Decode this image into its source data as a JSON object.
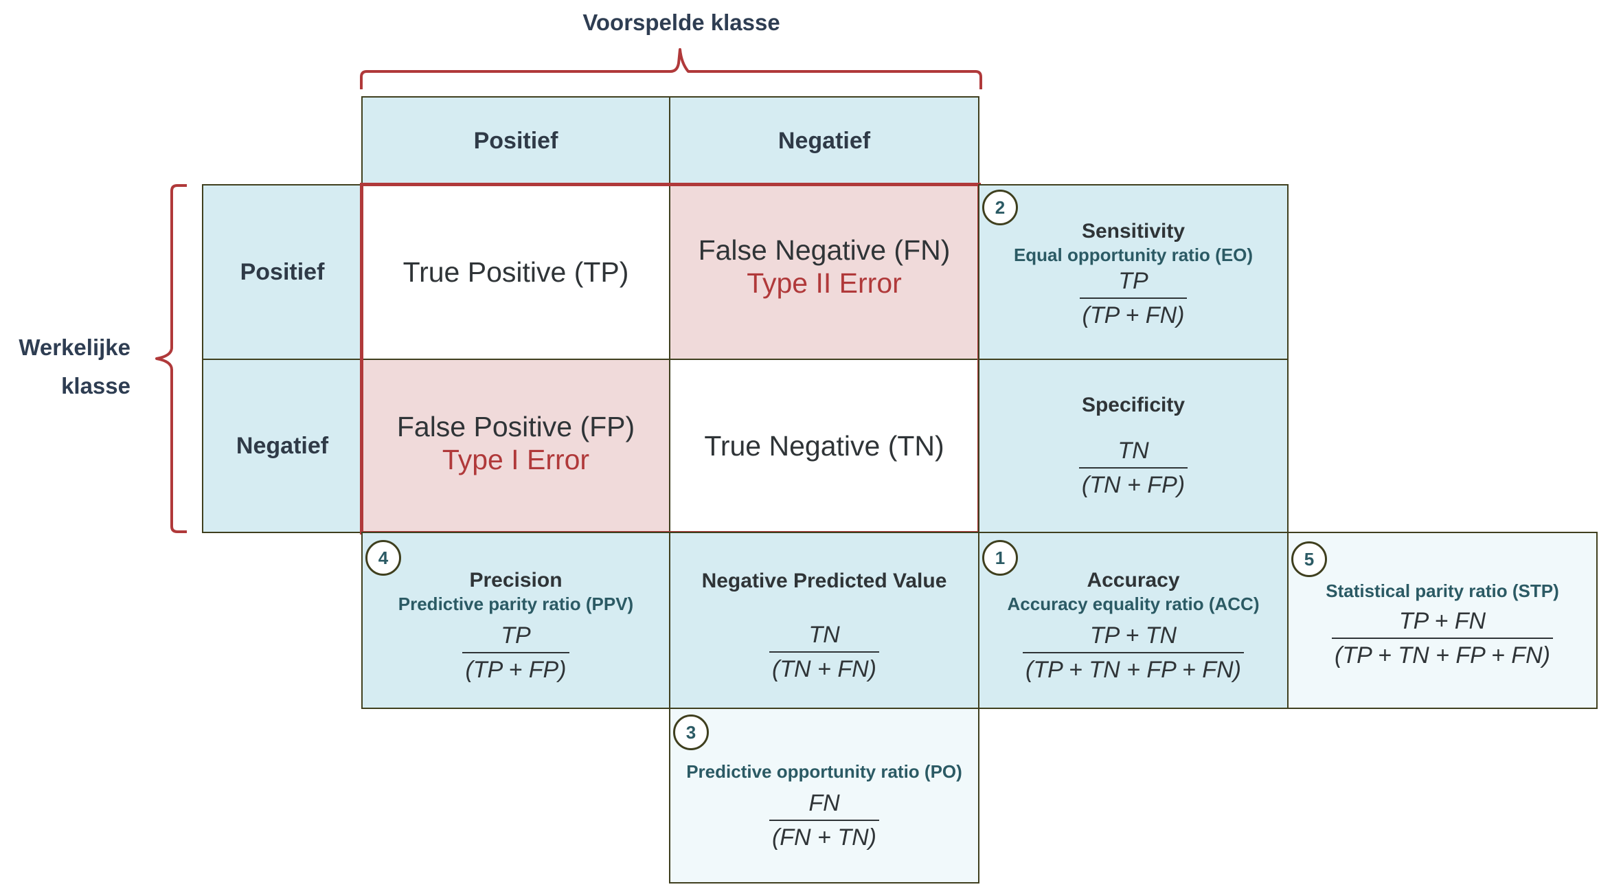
{
  "axis": {
    "predicted_label": "Voorspelde klasse",
    "actual_label_line1": "Werkelijke",
    "actual_label_line2": "klasse"
  },
  "headers": {
    "col_positive": "Positief",
    "col_negative": "Negatief",
    "row_positive": "Positief",
    "row_negative": "Negatief"
  },
  "matrix": {
    "tp": "True Positive (TP)",
    "fn": "False Negative (FN)",
    "fn_error": "Type II Error",
    "fp": "False Positive (FP)",
    "fp_error": "Type I Error",
    "tn": "True Negative (TN)"
  },
  "metrics": {
    "sensitivity": {
      "badge": "2",
      "title": "Sensitivity",
      "subtitle": "Equal opportunity ratio (EO)",
      "num": "TP",
      "den": "(TP + FN)"
    },
    "specificity": {
      "title": "Specificity",
      "num": "TN",
      "den": "(TN + FP)"
    },
    "precision": {
      "badge": "4",
      "title": "Precision",
      "subtitle": "Predictive parity ratio (PPV)",
      "num": "TP",
      "den": "(TP + FP)"
    },
    "npv": {
      "title": "Negative Predicted Value",
      "num": "TN",
      "den": "(TN + FN)"
    },
    "accuracy": {
      "badge": "1",
      "title": "Accuracy",
      "subtitle": "Accuracy equality ratio (ACC)",
      "num": "TP + TN",
      "den": "(TP + TN + FP + FN)"
    },
    "stp": {
      "badge": "5",
      "subtitle": "Statistical parity ratio (STP)",
      "num": "TP + FN",
      "den": "(TP + TN + FP + FN)"
    },
    "po": {
      "badge": "3",
      "subtitle": "Predictive opportunity ratio (PO)",
      "num": "FN",
      "den": "(FN + TN)"
    }
  },
  "colors": {
    "header_fill": "#d6ecf2",
    "pale_fill": "#f1f9fb",
    "error_fill": "#f0dada",
    "accent_red": "#b0393a",
    "border_olive": "#3f3f1e",
    "teal_text": "#2b5a64"
  }
}
